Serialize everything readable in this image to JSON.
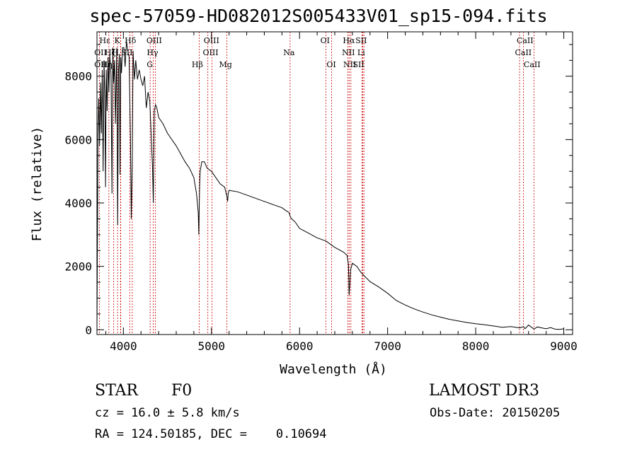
{
  "title": "spec-57059-HD082012S005433V01_sp15-094.fits",
  "footer": {
    "object_class": "STAR",
    "subclass": "F0",
    "survey": "LAMOST DR3",
    "cz": "cz = 16.0 ± 5.8 km/s",
    "obs_date": "Obs-Date: 20150205",
    "coords": "RA = 124.50185, DEC =    0.10694"
  },
  "colors": {
    "spectrum": "#000000",
    "line_marker": "#cc0000",
    "axis": "#000000"
  },
  "chart_data": {
    "type": "line",
    "title": "spec-57059-HD082012S005433V01_sp15-094.fits",
    "xlabel": "Wavelength (Å)",
    "ylabel": "Flux (relative)",
    "xlim": [
      3700,
      9100
    ],
    "ylim": [
      -150,
      9400
    ],
    "xticks": [
      4000,
      5000,
      6000,
      7000,
      8000,
      9000
    ],
    "yticks": [
      0,
      2000,
      4000,
      6000,
      8000
    ],
    "series": [
      {
        "name": "spectrum",
        "x": [
          3700,
          3705,
          3712,
          3720,
          3730,
          3740,
          3750,
          3760,
          3770,
          3780,
          3790,
          3797,
          3805,
          3815,
          3825,
          3835,
          3845,
          3860,
          3870,
          3880,
          3889,
          3900,
          3910,
          3925,
          3935,
          3945,
          3955,
          3962,
          3970,
          3978,
          3990,
          4005,
          4020,
          4035,
          4050,
          4065,
          4080,
          4090,
          4101,
          4110,
          4125,
          4140,
          4160,
          4180,
          4200,
          4220,
          4240,
          4260,
          4280,
          4300,
          4320,
          4330,
          4340,
          4350,
          4365,
          4380,
          4400,
          4450,
          4500,
          4550,
          4600,
          4650,
          4700,
          4750,
          4800,
          4830,
          4850,
          4856,
          4861,
          4866,
          4872,
          4890,
          4920,
          4950,
          5000,
          5050,
          5100,
          5150,
          5175,
          5183,
          5190,
          5200,
          5300,
          5400,
          5500,
          5600,
          5700,
          5800,
          5850,
          5880,
          5893,
          5910,
          5950,
          6000,
          6100,
          6200,
          6300,
          6400,
          6500,
          6540,
          6555,
          6563,
          6570,
          6580,
          6600,
          6650,
          6700,
          6800,
          6900,
          7000,
          7100,
          7200,
          7300,
          7400,
          7500,
          7600,
          7700,
          7800,
          7900,
          8000,
          8100,
          8200,
          8300,
          8400,
          8500,
          8542,
          8560,
          8600,
          8662,
          8700,
          8750,
          8800,
          8850,
          8900,
          8950,
          9000
        ],
        "values": [
          0,
          2600,
          6300,
          7300,
          5800,
          7800,
          6200,
          8200,
          5000,
          8500,
          7300,
          4500,
          8200,
          6900,
          8600,
          7500,
          8700,
          8000,
          4300,
          8900,
          7800,
          8500,
          6500,
          8900,
          3300,
          8200,
          8700,
          4900,
          8600,
          8100,
          8900,
          8900,
          8300,
          9100,
          8800,
          8600,
          6100,
          3500,
          5200,
          8800,
          7900,
          8500,
          7900,
          8200,
          7900,
          7700,
          8000,
          7000,
          7500,
          7200,
          5800,
          5200,
          4000,
          6900,
          7100,
          7000,
          6700,
          6500,
          6200,
          6000,
          5800,
          5550,
          5300,
          5100,
          4800,
          4300,
          3700,
          3000,
          3900,
          4600,
          5000,
          5300,
          5300,
          5100,
          5000,
          4800,
          4600,
          4500,
          4200,
          4050,
          4300,
          4400,
          4350,
          4250,
          4150,
          4050,
          3950,
          3850,
          3750,
          3700,
          3580,
          3500,
          3400,
          3200,
          3050,
          2900,
          2800,
          2600,
          2450,
          2350,
          2050,
          1100,
          1400,
          1900,
          2100,
          2000,
          1800,
          1520,
          1350,
          1150,
          920,
          780,
          660,
          560,
          470,
          400,
          330,
          280,
          230,
          190,
          160,
          120,
          80,
          100,
          60,
          100,
          30,
          150,
          20,
          90,
          60,
          30,
          70,
          20,
          10,
          30
        ]
      }
    ],
    "line_markers": [
      {
        "label": "Hε",
        "wave": 3970,
        "row": 0,
        "lx": 3790
      },
      {
        "label": "K",
        "wave": 3934,
        "row": 0,
        "lx": 3930
      },
      {
        "label": "Hδ",
        "wave": 4101,
        "row": 0,
        "lx": 4080
      },
      {
        "label": "OIII",
        "wave": 4363,
        "row": 0,
        "lx": 4350
      },
      {
        "label": "OIII",
        "wave": 4959,
        "row": 0,
        "lx": 5000
      },
      {
        "label": "OI",
        "wave": 6300,
        "row": 0,
        "lx": 6290
      },
      {
        "label": "Hα",
        "wave": 6563,
        "row": 0,
        "lx": 6560
      },
      {
        "label": "SII",
        "wave": 6717,
        "row": 0,
        "lx": 6700
      },
      {
        "label": "CaII",
        "wave": 8542,
        "row": 0,
        "lx": 8560
      },
      {
        "label": "OII",
        "wave": 3727,
        "row": 1,
        "lx": 3740
      },
      {
        "label": "Hζ",
        "wave": 3889,
        "row": 1,
        "lx": 3850
      },
      {
        "label": "H",
        "wave": 3968,
        "row": 1,
        "lx": 3910
      },
      {
        "label": "SII",
        "wave": 4072,
        "row": 1,
        "lx": 4040
      },
      {
        "label": "Hγ",
        "wave": 4340,
        "row": 1,
        "lx": 4330
      },
      {
        "label": "OIII",
        "wave": 5007,
        "row": 1,
        "lx": 4990
      },
      {
        "label": "Na",
        "wave": 5893,
        "row": 1,
        "lx": 5880
      },
      {
        "label": "NII",
        "wave": 6583,
        "row": 1,
        "lx": 6555
      },
      {
        "label": "Li",
        "wave": 6708,
        "row": 1,
        "lx": 6700
      },
      {
        "label": "CaII",
        "wave": 8498,
        "row": 1,
        "lx": 8540
      },
      {
        "label": "OII",
        "wave": 3727,
        "row": 2,
        "lx": 3740
      },
      {
        "label": "Hη",
        "wave": 3835,
        "row": 2,
        "lx": 3810
      },
      {
        "label": "G",
        "wave": 4304,
        "row": 2,
        "lx": 4300
      },
      {
        "label": "Hβ",
        "wave": 4861,
        "row": 2,
        "lx": 4840
      },
      {
        "label": "Mg",
        "wave": 5175,
        "row": 2,
        "lx": 5160
      },
      {
        "label": "OI",
        "wave": 6364,
        "row": 2,
        "lx": 6360
      },
      {
        "label": "NII",
        "wave": 6548,
        "row": 2,
        "lx": 6570
      },
      {
        "label": "SII",
        "wave": 6731,
        "row": 2,
        "lx": 6670
      },
      {
        "label": "CaII",
        "wave": 8662,
        "row": 2,
        "lx": 8640
      }
    ]
  }
}
